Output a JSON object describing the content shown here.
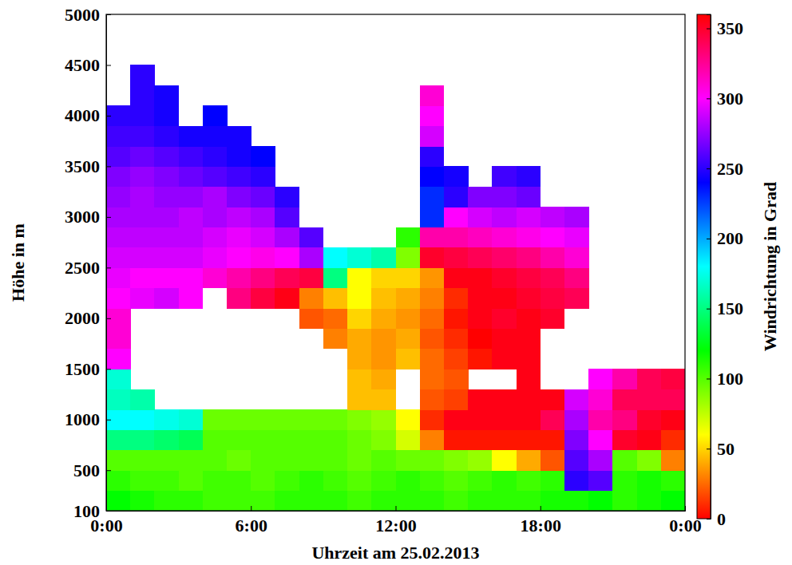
{
  "chart_data": {
    "type": "heatmap",
    "xlabel": "Uhrzeit am 25.02.2013",
    "ylabel": "Höhe in m",
    "xlim": [
      0,
      24
    ],
    "xticks": [
      {
        "value": 0,
        "label": "0:00"
      },
      {
        "value": 6,
        "label": "6:00"
      },
      {
        "value": 12,
        "label": "12:00"
      },
      {
        "value": 18,
        "label": "18:00"
      },
      {
        "value": 24,
        "label": "0:00"
      }
    ],
    "ylim": [
      100,
      5000
    ],
    "yticks": [
      100,
      500,
      1000,
      1500,
      2000,
      2500,
      3000,
      3500,
      4000,
      4500,
      5000
    ],
    "x": [
      0,
      1,
      2,
      3,
      4,
      5,
      6,
      7,
      8,
      9,
      10,
      11,
      12,
      13,
      14,
      15,
      16,
      17,
      18,
      19,
      20,
      21,
      22,
      23,
      24
    ],
    "y": [
      100,
      300,
      500,
      700,
      900,
      1100,
      1300,
      1500,
      1700,
      1900,
      2100,
      2300,
      2500,
      2700,
      2900,
      3100,
      3300,
      3500,
      3700,
      3900,
      4100,
      4300,
      4500
    ],
    "values": [
      [
        120,
        115,
        110,
        110,
        105,
        105,
        105,
        110,
        110,
        110,
        105,
        110,
        110,
        110,
        105,
        110,
        110,
        110,
        115,
        115,
        120,
        110,
        115,
        120
      ],
      [
        110,
        105,
        105,
        100,
        105,
        105,
        100,
        105,
        110,
        105,
        100,
        105,
        110,
        105,
        100,
        105,
        110,
        105,
        110,
        250,
        260,
        110,
        115,
        110
      ],
      [
        100,
        100,
        100,
        100,
        100,
        95,
        100,
        100,
        100,
        100,
        95,
        100,
        95,
        95,
        90,
        85,
        60,
        40,
        20,
        260,
        280,
        100,
        90,
        30
      ],
      [
        150,
        150,
        145,
        140,
        100,
        100,
        100,
        100,
        100,
        100,
        95,
        90,
        70,
        30,
        5,
        5,
        5,
        5,
        5,
        270,
        300,
        350,
        355,
        10
      ],
      [
        180,
        180,
        175,
        170,
        95,
        95,
        95,
        95,
        95,
        95,
        90,
        85,
        60,
        10,
        355,
        355,
        355,
        355,
        340,
        280,
        320,
        330,
        350,
        355
      ],
      [
        165,
        160,
        null,
        null,
        null,
        null,
        null,
        null,
        null,
        null,
        45,
        45,
        null,
        20,
        15,
        355,
        355,
        355,
        355,
        290,
        310,
        340,
        340,
        340
      ],
      [
        170,
        null,
        null,
        null,
        null,
        null,
        null,
        null,
        null,
        null,
        45,
        40,
        null,
        25,
        20,
        null,
        null,
        355,
        null,
        null,
        300,
        320,
        340,
        345
      ],
      [
        300,
        null,
        null,
        null,
        null,
        null,
        null,
        null,
        null,
        null,
        40,
        35,
        45,
        25,
        15,
        5,
        355,
        355,
        null,
        null,
        null,
        null,
        null,
        null
      ],
      [
        310,
        null,
        null,
        null,
        null,
        null,
        null,
        null,
        null,
        30,
        40,
        35,
        40,
        20,
        10,
        0,
        355,
        355,
        null,
        null,
        null,
        null,
        null,
        null
      ],
      [
        310,
        null,
        null,
        null,
        null,
        null,
        null,
        null,
        20,
        25,
        50,
        40,
        35,
        25,
        5,
        355,
        350,
        355,
        350,
        null,
        null,
        null,
        null,
        null
      ],
      [
        300,
        295,
        290,
        300,
        null,
        330,
        345,
        355,
        30,
        45,
        60,
        45,
        40,
        30,
        10,
        355,
        355,
        350,
        345,
        340,
        null,
        null,
        null,
        null
      ],
      [
        295,
        300,
        300,
        300,
        310,
        320,
        330,
        340,
        345,
        150,
        60,
        50,
        50,
        35,
        355,
        355,
        350,
        345,
        340,
        330,
        null,
        null,
        null,
        null
      ],
      [
        290,
        290,
        290,
        290,
        295,
        300,
        305,
        300,
        280,
        180,
        170,
        160,
        90,
        350,
        345,
        340,
        335,
        330,
        320,
        310,
        null,
        null,
        null,
        null
      ],
      [
        285,
        285,
        285,
        285,
        290,
        295,
        290,
        280,
        260,
        null,
        null,
        null,
        110,
        320,
        320,
        315,
        310,
        305,
        300,
        295,
        null,
        null,
        null,
        null
      ],
      [
        280,
        280,
        280,
        285,
        280,
        285,
        280,
        260,
        null,
        null,
        null,
        null,
        null,
        230,
        300,
        290,
        285,
        290,
        285,
        280,
        null,
        null,
        null,
        null
      ],
      [
        275,
        280,
        275,
        275,
        280,
        270,
        265,
        250,
        null,
        null,
        null,
        null,
        null,
        230,
        250,
        270,
        270,
        265,
        null,
        null,
        null,
        null,
        null,
        null
      ],
      [
        270,
        275,
        270,
        265,
        260,
        255,
        250,
        null,
        null,
        null,
        null,
        null,
        null,
        240,
        245,
        null,
        255,
        250,
        null,
        null,
        null,
        null,
        null,
        null
      ],
      [
        260,
        265,
        260,
        255,
        250,
        245,
        240,
        null,
        null,
        null,
        null,
        null,
        null,
        250,
        null,
        null,
        null,
        null,
        null,
        null,
        null,
        null,
        null,
        null
      ],
      [
        255,
        255,
        250,
        245,
        245,
        245,
        null,
        null,
        null,
        null,
        null,
        null,
        null,
        290,
        null,
        null,
        null,
        null,
        null,
        null,
        null,
        null,
        null,
        null
      ],
      [
        250,
        250,
        245,
        null,
        240,
        null,
        null,
        null,
        null,
        null,
        null,
        null,
        null,
        300,
        null,
        null,
        null,
        null,
        null,
        null,
        null,
        null,
        null,
        null
      ],
      [
        null,
        250,
        245,
        null,
        null,
        null,
        null,
        null,
        null,
        null,
        null,
        null,
        null,
        310,
        null,
        null,
        null,
        null,
        null,
        null,
        null,
        null,
        null,
        null
      ],
      [
        null,
        250,
        null,
        null,
        null,
        null,
        null,
        null,
        null,
        null,
        null,
        null,
        null,
        null,
        null,
        null,
        null,
        null,
        null,
        null,
        null,
        null,
        null,
        null
      ]
    ],
    "colorbar": {
      "label": "Windrichtung in Grad",
      "range": [
        0,
        360
      ],
      "ticks": [
        0,
        50,
        100,
        150,
        200,
        250,
        300,
        350
      ]
    }
  }
}
